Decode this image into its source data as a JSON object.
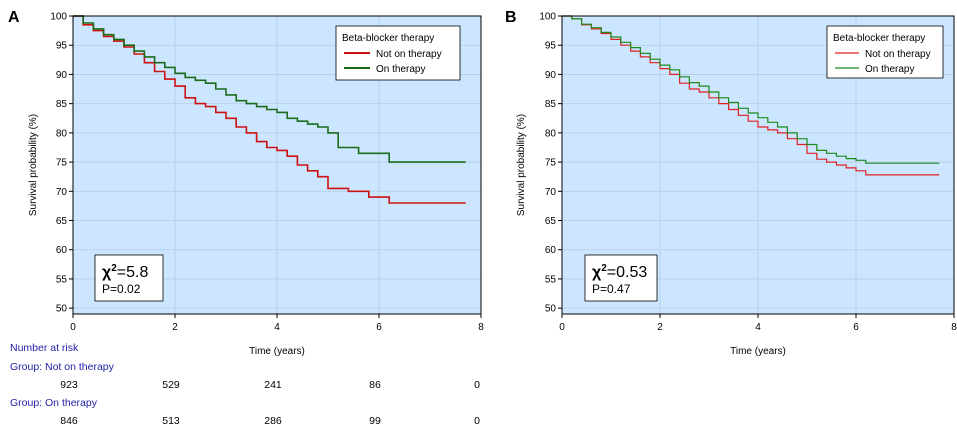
{
  "chart_data": [
    {
      "type": "line",
      "panel_label": "A",
      "xlabel": "Time (years)",
      "ylabel": "Survival probability (%)",
      "xlim": [
        0,
        8
      ],
      "ylim": [
        49,
        100
      ],
      "xticks": [
        0,
        2,
        4,
        6,
        8
      ],
      "yticks": [
        50,
        55,
        60,
        65,
        70,
        75,
        80,
        85,
        90,
        95,
        100
      ],
      "grid": true,
      "background": "#cce6ff",
      "legend": {
        "title": "Beta-blocker therapy",
        "placement": "top-right"
      },
      "series": [
        {
          "name": "Not on therapy",
          "color": "#cc1111",
          "x": [
            0,
            0.2,
            0.4,
            0.6,
            0.8,
            1.0,
            1.2,
            1.4,
            1.6,
            1.8,
            2.0,
            2.2,
            2.4,
            2.6,
            2.8,
            3.0,
            3.2,
            3.4,
            3.6,
            3.8,
            4.0,
            4.2,
            4.4,
            4.6,
            4.8,
            5.0,
            5.4,
            5.8,
            6.2,
            7.7
          ],
          "y": [
            100,
            98.5,
            97.5,
            96.5,
            95.7,
            94.7,
            93.5,
            92.0,
            90.5,
            89.2,
            88.0,
            86.0,
            85.0,
            84.5,
            83.5,
            82.5,
            81.0,
            80.0,
            78.5,
            77.5,
            77.0,
            76.0,
            74.5,
            73.5,
            72.5,
            70.5,
            70.0,
            69.0,
            68.0,
            68.0
          ]
        },
        {
          "name": "On therapy",
          "color": "#1a6b1a",
          "x": [
            0,
            0.2,
            0.4,
            0.6,
            0.8,
            1.0,
            1.2,
            1.4,
            1.6,
            1.8,
            2.0,
            2.2,
            2.4,
            2.6,
            2.8,
            3.0,
            3.2,
            3.4,
            3.6,
            3.8,
            4.0,
            4.2,
            4.4,
            4.6,
            4.8,
            5.0,
            5.2,
            5.6,
            6.0,
            6.2,
            7.7
          ],
          "y": [
            100,
            98.8,
            97.8,
            96.8,
            96.0,
            95.0,
            94.0,
            93.0,
            92.0,
            91.2,
            90.2,
            89.5,
            89.0,
            88.5,
            87.5,
            86.5,
            85.5,
            85.0,
            84.5,
            84.0,
            83.5,
            82.5,
            82.0,
            81.5,
            81.0,
            80.0,
            77.5,
            76.5,
            76.5,
            75.0,
            75.0
          ]
        }
      ],
      "annotation": {
        "chi2_prefix": "χ",
        "chi2_sup": "2",
        "chi2_value": "=5.8",
        "p_text": "P=0.02"
      }
    },
    {
      "type": "line",
      "panel_label": "B",
      "xlabel": "Time (years)",
      "ylabel": "Survival probability (%)",
      "xlim": [
        0,
        8
      ],
      "ylim": [
        49,
        100
      ],
      "xticks": [
        0,
        2,
        4,
        6,
        8
      ],
      "yticks": [
        50,
        55,
        60,
        65,
        70,
        75,
        80,
        85,
        90,
        95,
        100
      ],
      "grid": true,
      "background": "#cce6ff",
      "legend": {
        "title": "Beta-blocker therapy",
        "placement": "top-right"
      },
      "series": [
        {
          "name": "Not on therapy",
          "color": "#e02020",
          "x": [
            0,
            0.2,
            0.4,
            0.6,
            0.8,
            1.0,
            1.2,
            1.4,
            1.6,
            1.8,
            2.0,
            2.2,
            2.4,
            2.6,
            2.8,
            3.0,
            3.2,
            3.4,
            3.6,
            3.8,
            4.0,
            4.2,
            4.4,
            4.6,
            4.8,
            5.0,
            5.2,
            5.4,
            5.6,
            5.8,
            6.0,
            6.2,
            7.7
          ],
          "y": [
            100,
            99.5,
            98.5,
            97.8,
            97.0,
            96.0,
            95.0,
            94.0,
            93.0,
            92.0,
            91.0,
            90.0,
            88.5,
            87.5,
            87.0,
            86.0,
            85.0,
            84.0,
            83.0,
            82.0,
            81.0,
            80.5,
            80.0,
            79.0,
            78.0,
            76.5,
            75.5,
            75.0,
            74.5,
            74.0,
            73.5,
            72.8,
            72.8
          ]
        },
        {
          "name": "On therapy",
          "color": "#1a8a1a",
          "x": [
            0,
            0.2,
            0.4,
            0.6,
            0.8,
            1.0,
            1.2,
            1.4,
            1.6,
            1.8,
            2.0,
            2.2,
            2.4,
            2.6,
            2.8,
            3.0,
            3.2,
            3.4,
            3.6,
            3.8,
            4.0,
            4.2,
            4.4,
            4.6,
            4.8,
            5.0,
            5.2,
            5.4,
            5.6,
            5.8,
            6.0,
            6.2,
            7.7
          ],
          "y": [
            100,
            99.5,
            98.6,
            98.0,
            97.2,
            96.4,
            95.5,
            94.6,
            93.6,
            92.6,
            91.6,
            90.8,
            89.6,
            88.6,
            88.0,
            87.0,
            86.0,
            85.2,
            84.2,
            83.4,
            82.6,
            81.8,
            81.0,
            80.0,
            79.0,
            78.0,
            77.0,
            76.5,
            76.0,
            75.6,
            75.3,
            74.8,
            74.8
          ]
        }
      ],
      "annotation": {
        "chi2_prefix": "χ",
        "chi2_sup": "2",
        "chi2_value": "=0.53",
        "p_text": "P=0.47"
      }
    }
  ],
  "risk_table": {
    "title": "Number at risk",
    "groups": [
      {
        "label": "Group: Not on therapy",
        "values": [
          "923",
          "529",
          "241",
          "86",
          "0"
        ]
      },
      {
        "label": "Group: On therapy",
        "values": [
          "846",
          "513",
          "286",
          "99",
          "0"
        ]
      }
    ]
  }
}
